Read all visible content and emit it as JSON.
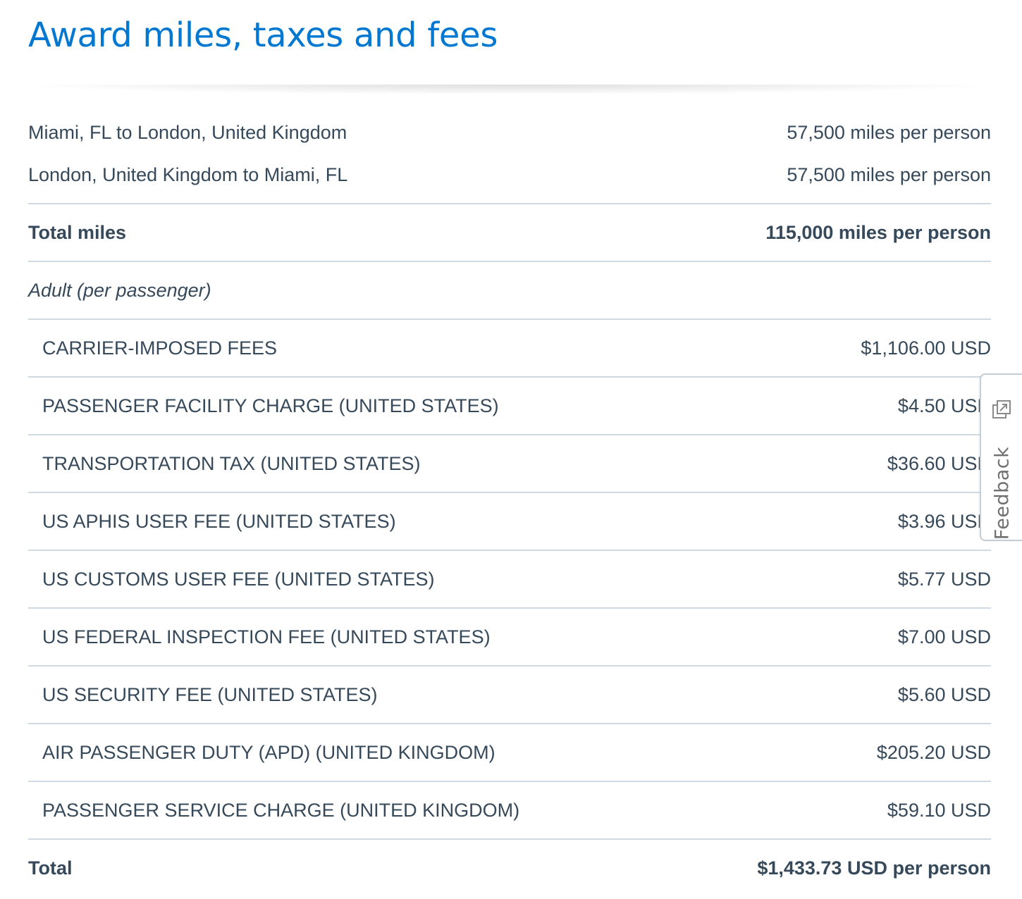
{
  "page": {
    "title": "Award miles, taxes and fees"
  },
  "segments": [
    {
      "route": "Miami, FL to London, United Kingdom",
      "miles": "57,500 miles per person"
    },
    {
      "route": "London, United Kingdom to Miami, FL",
      "miles": "57,500 miles per person"
    }
  ],
  "total_miles": {
    "label": "Total miles",
    "value": "115,000 miles per person"
  },
  "passenger_type": "Adult (per passenger)",
  "fees": [
    {
      "name": "CARRIER-IMPOSED FEES",
      "amount": "$1,106.00 USD"
    },
    {
      "name": "PASSENGER FACILITY CHARGE (UNITED STATES)",
      "amount": "$4.50 USD"
    },
    {
      "name": "TRANSPORTATION TAX (UNITED STATES)",
      "amount": "$36.60 USD"
    },
    {
      "name": "US APHIS USER FEE (UNITED STATES)",
      "amount": "$3.96 USD"
    },
    {
      "name": "US CUSTOMS USER FEE (UNITED STATES)",
      "amount": "$5.77 USD"
    },
    {
      "name": "US FEDERAL INSPECTION FEE (UNITED STATES)",
      "amount": "$7.00 USD"
    },
    {
      "name": "US SECURITY FEE (UNITED STATES)",
      "amount": "$5.60 USD"
    },
    {
      "name": "AIR PASSENGER DUTY (APD) (UNITED KINGDOM)",
      "amount": "$205.20 USD"
    },
    {
      "name": "PASSENGER SERVICE CHARGE (UNITED KINGDOM)",
      "amount": "$59.10 USD"
    }
  ],
  "total": {
    "label": "Total",
    "value": "$1,433.73 USD per person"
  },
  "feedback": {
    "label": "Feedback",
    "icon": "external-link-icon"
  },
  "colors": {
    "title": "#0078d2",
    "text": "#36495a",
    "divider": "#d0dae0"
  }
}
